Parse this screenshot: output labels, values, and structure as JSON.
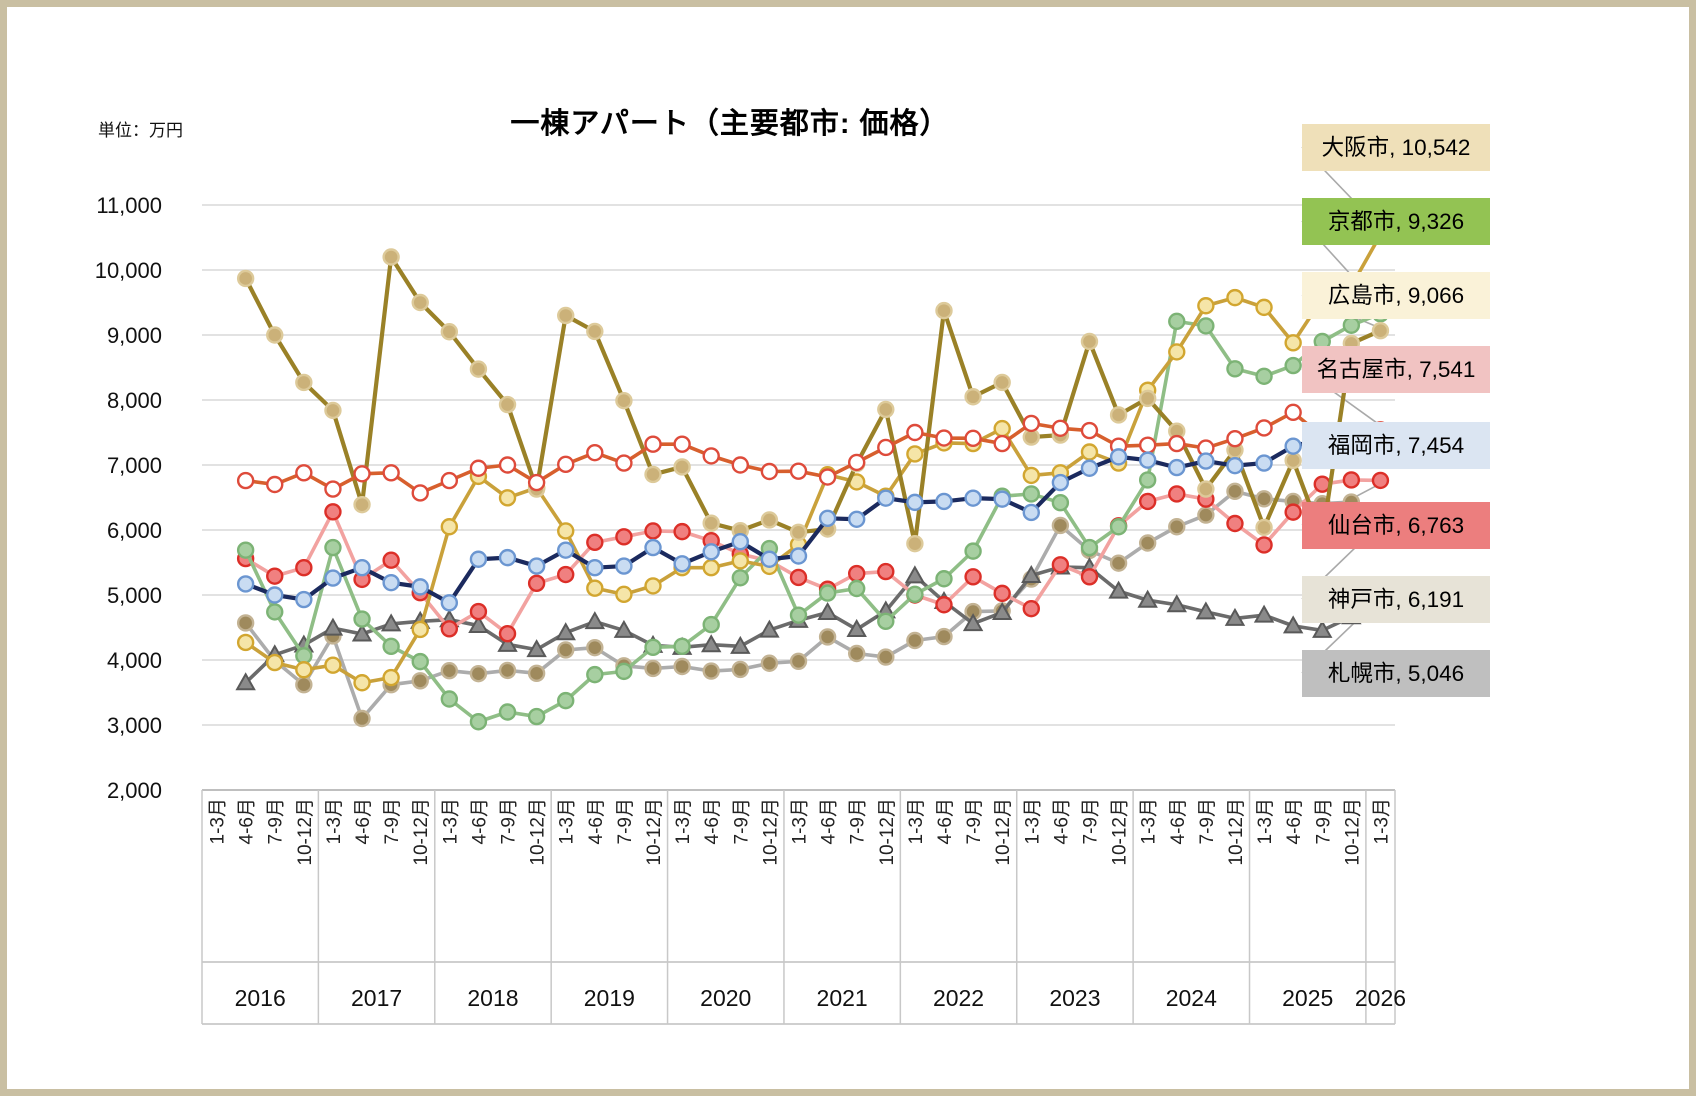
{
  "title": "一棟アパート（主要都市: 価格）",
  "unit_label": "単位：万円",
  "chart_data": {
    "type": "line",
    "title": "一棟アパート（主要都市: 価格）",
    "unit": "単位：万円",
    "y_axis": {
      "min": 2000,
      "max": 11000,
      "step": 1000,
      "grid": true,
      "tick_labels": [
        "2,000",
        "3,000",
        "4,000",
        "5,000",
        "6,000",
        "7,000",
        "8,000",
        "9,000",
        "10,000",
        "11,000"
      ]
    },
    "x_axis": {
      "quarter_labels": [
        "1-3月",
        "4-6月",
        "7-9月",
        "10-12月",
        "1-3月",
        "4-6月",
        "7-9月",
        "10-12月",
        "1-3月",
        "4-6月",
        "7-9月",
        "10-12月",
        "1-3月",
        "4-6月",
        "7-9月",
        "10-12月",
        "1-3月",
        "4-6月",
        "7-9月",
        "10-12月",
        "1-3月",
        "4-6月",
        "7-9月",
        "10-12月",
        "1-3月",
        "4-6月",
        "7-9月",
        "10-12月",
        "1-3月",
        "4-6月",
        "7-9月",
        "10-12月",
        "1-3月",
        "4-6月",
        "7-9月",
        "10-12月",
        "1-3月",
        "4-6月",
        "7-9月",
        "10-12月",
        "1-3月"
      ],
      "years": [
        {
          "label": "2016",
          "quarters": 4
        },
        {
          "label": "2017",
          "quarters": 4
        },
        {
          "label": "2018",
          "quarters": 4
        },
        {
          "label": "2019",
          "quarters": 4
        },
        {
          "label": "2020",
          "quarters": 4
        },
        {
          "label": "2021",
          "quarters": 4
        },
        {
          "label": "2022",
          "quarters": 4
        },
        {
          "label": "2023",
          "quarters": 4
        },
        {
          "label": "2024",
          "quarters": 4
        },
        {
          "label": "2025",
          "quarters": 4
        },
        {
          "label": "2026",
          "quarters": 1
        }
      ]
    },
    "legend_position": "right-callouts",
    "series": [
      {
        "id": "osaka",
        "name": "大阪市",
        "line_color": "#c9a13b",
        "marker": {
          "shape": "circle",
          "fill": "#f5e5a8",
          "stroke": "#d2a630"
        },
        "values": [
          null,
          4270,
          3960,
          3850,
          3920,
          3650,
          3730,
          4470,
          6050,
          6825,
          6495,
          6650,
          5985,
          5105,
          5010,
          5140,
          5420,
          5420,
          5525,
          5440,
          5775,
          6850,
          6740,
          6520,
          7170,
          7340,
          7330,
          7560,
          6840,
          6880,
          7200,
          7030,
          8150,
          8740,
          9450,
          9575,
          9425,
          8880,
          9560,
          9750,
          10542
        ]
      },
      {
        "id": "kyoto",
        "name": "京都市",
        "line_color": "#8fbe86",
        "marker": {
          "shape": "circle",
          "fill": "#a7cfa1",
          "stroke": "#7cb375"
        },
        "values": [
          null,
          5690,
          4740,
          4065,
          5730,
          4630,
          4210,
          3975,
          3400,
          3050,
          3200,
          3130,
          3375,
          3775,
          3825,
          4195,
          4210,
          4545,
          5265,
          5715,
          4690,
          5030,
          5100,
          4595,
          5010,
          5250,
          5675,
          6520,
          6555,
          6420,
          5730,
          6050,
          6770,
          9210,
          9140,
          8480,
          8365,
          8530,
          8900,
          9150,
          9326
        ]
      },
      {
        "id": "hiroshima",
        "name": "広島市",
        "line_color": "#9a8127",
        "marker": {
          "shape": "circle",
          "fill": "#cbb179",
          "stroke": "#ddca9a"
        },
        "values": [
          null,
          9870,
          9000,
          8270,
          7840,
          6390,
          10200,
          9500,
          9050,
          8475,
          7930,
          6630,
          9300,
          9055,
          7990,
          6855,
          6970,
          6105,
          5990,
          6155,
          5965,
          6015,
          7020,
          7855,
          5790,
          9375,
          8050,
          8270,
          7430,
          7460,
          8900,
          7770,
          8025,
          7520,
          6630,
          7230,
          6040,
          7070,
          5880,
          8870,
          9066
        ]
      },
      {
        "id": "nagoya",
        "name": "名古屋市",
        "line_color": "#d75f2d",
        "marker": {
          "shape": "circle",
          "fill": "#ffffff",
          "stroke": "#de4b3b"
        },
        "values": [
          null,
          6760,
          6700,
          6880,
          6630,
          6865,
          6880,
          6570,
          6760,
          6950,
          7000,
          6730,
          7010,
          7190,
          7030,
          7320,
          7320,
          7140,
          7000,
          6900,
          6905,
          6815,
          7040,
          7270,
          7500,
          7415,
          7410,
          7330,
          7640,
          7565,
          7530,
          7290,
          7305,
          7330,
          7260,
          7405,
          7570,
          7810,
          7440,
          7230,
          7541
        ]
      },
      {
        "id": "fukuoka",
        "name": "福岡市",
        "line_color": "#1b2a5e",
        "marker": {
          "shape": "circle",
          "fill": "#c9dcf2",
          "stroke": "#6b96d1"
        },
        "values": [
          null,
          5170,
          5000,
          4930,
          5260,
          5420,
          5190,
          5125,
          4880,
          5550,
          5575,
          5445,
          5690,
          5420,
          5445,
          5730,
          5480,
          5665,
          5820,
          5550,
          5600,
          6180,
          6165,
          6490,
          6425,
          6440,
          6490,
          6475,
          6270,
          6730,
          6950,
          7125,
          7075,
          6960,
          7060,
          6990,
          7030,
          7290,
          7400,
          7435,
          7454
        ]
      },
      {
        "id": "sendai",
        "name": "仙台市",
        "line_color": "#f2a2a0",
        "marker": {
          "shape": "circle",
          "fill": "#f08080",
          "stroke": "#dc2f28"
        },
        "values": [
          null,
          5560,
          5290,
          5420,
          6280,
          5240,
          5535,
          5035,
          4480,
          4745,
          4405,
          5180,
          5315,
          5810,
          5895,
          5985,
          5975,
          5835,
          5630,
          5525,
          5270,
          5090,
          5330,
          5360,
          5000,
          4850,
          5280,
          5025,
          4790,
          5465,
          5280,
          6065,
          6440,
          6555,
          6475,
          6100,
          5770,
          6275,
          6705,
          6770,
          6763
        ]
      },
      {
        "id": "kobe",
        "name": "神戸市",
        "line_color": "#acacac",
        "marker": {
          "shape": "circle",
          "fill": "#9f8a5d",
          "stroke": "#c3b394"
        },
        "values": [
          null,
          4570,
          3990,
          3620,
          4370,
          3100,
          3620,
          3680,
          3835,
          3790,
          3840,
          3795,
          4155,
          4190,
          3910,
          3870,
          3900,
          3830,
          3855,
          3950,
          3980,
          4355,
          4100,
          4045,
          4300,
          4360,
          4745,
          4755,
          5245,
          6070,
          5685,
          5490,
          5800,
          6050,
          6230,
          6595,
          6480,
          6440,
          6405,
          6430,
          6191
        ]
      },
      {
        "id": "sapporo",
        "name": "札幌市",
        "line_color": "#6b6b6b",
        "marker": {
          "shape": "triangle",
          "fill": "#8a8a8a",
          "stroke": "#595959"
        },
        "values": [
          null,
          3650,
          4080,
          4230,
          4490,
          4400,
          4555,
          4595,
          4620,
          4530,
          4240,
          4160,
          4420,
          4590,
          4455,
          4225,
          4195,
          4235,
          4210,
          4460,
          4610,
          4730,
          4470,
          4755,
          5295,
          4900,
          4560,
          4730,
          5300,
          5430,
          5420,
          5060,
          4920,
          4850,
          4740,
          4640,
          4690,
          4525,
          4455,
          4665,
          5046
        ]
      }
    ],
    "legend": [
      {
        "series": "osaka",
        "label": "大阪市, 10,542",
        "bg": "#efe0b9",
        "final_value": 10542
      },
      {
        "series": "kyoto",
        "label": "京都市, 9,326",
        "bg": "#93c353",
        "final_value": 9326
      },
      {
        "series": "hiroshima",
        "label": "広島市, 9,066",
        "bg": "#faf2d8",
        "final_value": 9066
      },
      {
        "series": "nagoya",
        "label": "名古屋市, 7,541",
        "bg": "#f1c3c2",
        "final_value": 7541
      },
      {
        "series": "fukuoka",
        "label": "福岡市, 7,454",
        "bg": "#dbe5f2",
        "final_value": 7454
      },
      {
        "series": "sendai",
        "label": "仙台市, 6,763",
        "bg": "#ec7e7e",
        "final_value": 6763
      },
      {
        "series": "kobe",
        "label": "神戸市, 6,191",
        "bg": "#e7e3d7",
        "final_value": 6191
      },
      {
        "series": "sapporo",
        "label": "札幌市, 5,046",
        "bg": "#bfbfbf",
        "final_value": 5046
      }
    ]
  }
}
